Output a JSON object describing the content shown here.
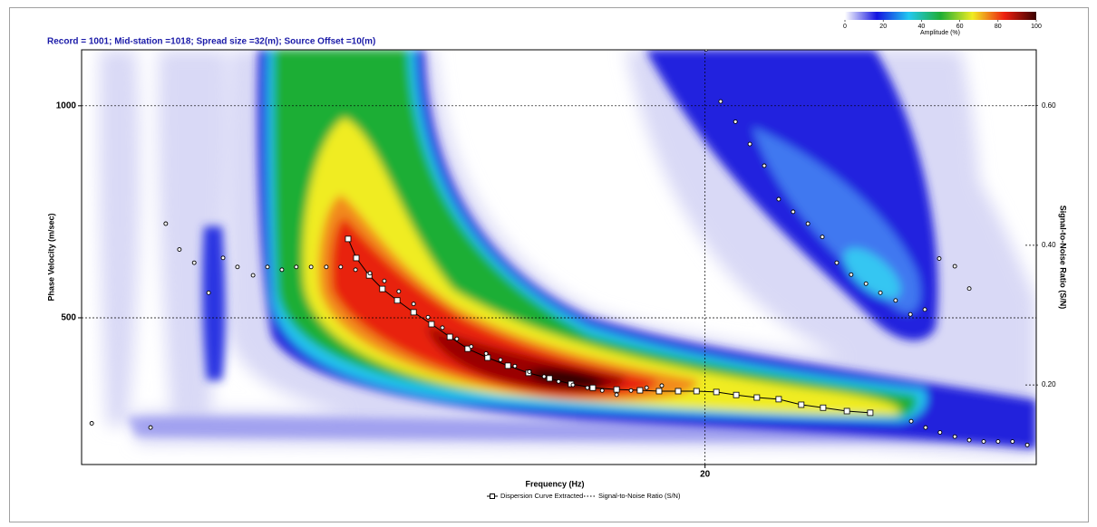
{
  "chart_data": {
    "type": "dispersion",
    "title": "Record = 1001; Mid-station =1018; Spread size =32(m); Source Offset =10(m)",
    "xlabel": "Frequency (Hz)",
    "ylabel": "Phase Velocity (m/sec)",
    "y2label": "Signal-to-Noise Ratio (S/N)",
    "xlim": [
      4,
      28.5
    ],
    "xticks": [
      20
    ],
    "ylim": [
      154,
      1132
    ],
    "yticks": [
      500,
      1000
    ],
    "y2lim": [
      0.086,
      0.68
    ],
    "y2ticks": [
      {
        "value": 0.2,
        "label": "0.20"
      },
      {
        "value": 0.4,
        "label": "0.40"
      },
      {
        "value": 0.6,
        "label": "0.60"
      }
    ],
    "grid": true,
    "colorbar": {
      "label": "Amplitude (%)",
      "lim": [
        0,
        100
      ],
      "ticks": [
        0,
        20,
        40,
        60,
        80,
        100
      ],
      "colors": [
        "#ffffff",
        "#1414e0",
        "#22c8f0",
        "#1fae35",
        "#f0ec24",
        "#ee2010",
        "#3a0000"
      ]
    },
    "series": [
      {
        "name": "Dispersion Curve Extracted",
        "color": "#000000",
        "marker": "square",
        "x": [
          10.84,
          11.05,
          11.38,
          11.72,
          12.1,
          12.52,
          12.98,
          13.45,
          13.91,
          14.42,
          14.94,
          15.47,
          16.01,
          16.56,
          17.12,
          17.73,
          18.33,
          18.82,
          19.31,
          19.78,
          20.29,
          20.8,
          21.33,
          21.89,
          22.47,
          23.03,
          23.64,
          24.24
        ],
        "values": [
          686,
          641,
          600,
          568,
          541,
          513,
          485,
          455,
          427,
          406,
          387,
          370,
          357,
          344,
          335,
          331,
          329,
          327,
          327,
          327,
          325,
          318,
          312,
          308,
          295,
          288,
          280,
          276
        ]
      },
      {
        "name": "Signal-to-Noise Ratio (S/N)",
        "color": "#000000",
        "marker": "circle",
        "axis": "y2",
        "x": [
          4.26,
          5.77,
          6.16,
          6.51,
          6.89,
          7.26,
          7.63,
          8.0,
          8.4,
          8.77,
          9.14,
          9.51,
          9.89,
          10.28,
          10.65,
          11.03,
          11.4,
          11.77,
          12.14,
          12.52,
          12.89,
          13.26,
          13.63,
          14.0,
          14.38,
          14.75,
          15.12,
          15.49,
          15.87,
          16.24,
          16.61,
          16.98,
          17.36,
          17.73,
          18.1,
          18.5,
          18.89,
          20.03,
          20.4,
          20.78,
          21.15,
          21.52,
          21.89,
          22.26,
          22.64,
          23.01,
          23.38,
          23.75,
          24.13,
          24.5,
          24.89,
          25.27,
          25.64,
          26.01,
          26.41,
          26.78,
          25.29,
          25.66,
          26.03,
          26.41,
          26.78,
          27.15,
          27.52,
          27.89,
          28.27
        ],
        "values": [
          0.145,
          0.139,
          0.431,
          0.394,
          0.375,
          0.332,
          0.382,
          0.369,
          0.357,
          0.369,
          0.365,
          0.369,
          0.369,
          0.369,
          0.369,
          0.365,
          0.36,
          0.349,
          0.334,
          0.316,
          0.297,
          0.282,
          0.266,
          0.255,
          0.245,
          0.236,
          0.227,
          0.219,
          0.212,
          0.205,
          0.2,
          0.196,
          0.192,
          0.186,
          0.192,
          0.196,
          0.199,
          0.681,
          0.606,
          0.577,
          0.545,
          0.514,
          0.466,
          0.448,
          0.431,
          0.412,
          0.375,
          0.358,
          0.345,
          0.332,
          0.321,
          0.301,
          0.308,
          0.381,
          0.37,
          0.338,
          0.148,
          0.139,
          0.132,
          0.126,
          0.121,
          0.119,
          0.119,
          0.119,
          0.114
        ]
      }
    ]
  }
}
